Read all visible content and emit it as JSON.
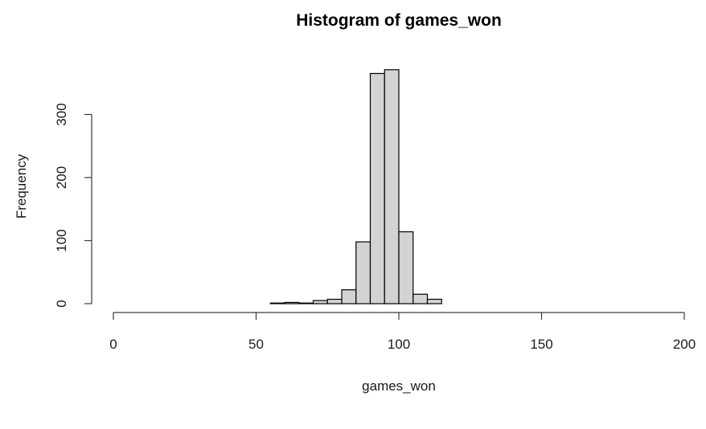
{
  "chart_data": {
    "type": "bar",
    "title": "Histogram of games_won",
    "xlabel": "games_won",
    "ylabel": "Frequency",
    "xlim": [
      0,
      200
    ],
    "ylim": [
      0,
      370
    ],
    "xticks": [
      0,
      50,
      100,
      150,
      200
    ],
    "yticks": [
      0,
      100,
      200,
      300
    ],
    "grid": false,
    "bar_fill": "#d3d3d3",
    "bar_edge": "#000000",
    "bins": [
      {
        "start": 55,
        "end": 60,
        "count": 1
      },
      {
        "start": 60,
        "end": 65,
        "count": 2
      },
      {
        "start": 65,
        "end": 70,
        "count": 1
      },
      {
        "start": 70,
        "end": 75,
        "count": 5
      },
      {
        "start": 75,
        "end": 80,
        "count": 7
      },
      {
        "start": 80,
        "end": 85,
        "count": 22
      },
      {
        "start": 85,
        "end": 90,
        "count": 98
      },
      {
        "start": 90,
        "end": 95,
        "count": 365
      },
      {
        "start": 95,
        "end": 100,
        "count": 371
      },
      {
        "start": 100,
        "end": 105,
        "count": 114
      },
      {
        "start": 105,
        "end": 110,
        "count": 15
      },
      {
        "start": 110,
        "end": 115,
        "count": 7
      }
    ]
  }
}
